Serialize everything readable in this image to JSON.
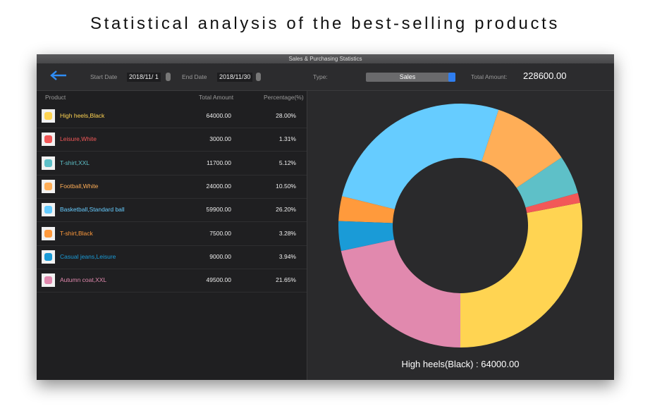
{
  "header": {
    "title": "Statistical analysis of the best-selling products"
  },
  "window": {
    "title": "Sales & Purchasing Statistics"
  },
  "toolbar": {
    "start_label": "Start Date",
    "start_date": "2018/11/ 1",
    "end_label": "End Date",
    "end_date": "2018/11/30",
    "type_label": "Type:",
    "type_value": "Sales",
    "total_label": "Total Amount:",
    "total_value": "228600.00"
  },
  "table": {
    "columns": [
      "Product",
      "Total Amount",
      "Percentage(%)"
    ]
  },
  "chart_data": {
    "type": "donut",
    "categories": [
      "High heels,Black",
      "Leisure,White",
      "T-shirt,XXL",
      "Football,White",
      "Basketball,Standard ball",
      "T-shirt,Black",
      "Casual jeans,Leisure",
      "Autumn coat,XXL"
    ],
    "values": [
      64000,
      3000,
      11700,
      24000,
      59900,
      7500,
      9000,
      49500
    ],
    "value_labels": [
      "64000.00",
      "3000.00",
      "11700.00",
      "24000.00",
      "59900.00",
      "7500.00",
      "9000.00",
      "49500.00"
    ],
    "percent_labels": [
      "28.00%",
      "1.31%",
      "5.12%",
      "10.50%",
      "26.20%",
      "3.28%",
      "3.94%",
      "21.65%"
    ],
    "colors": [
      "#ffd452",
      "#f25858",
      "#5ec0c8",
      "#ffae57",
      "#66ccff",
      "#ff9a3c",
      "#1a9bd7",
      "#e189ae"
    ],
    "caption": "High heels(Black) : 64000.00"
  }
}
